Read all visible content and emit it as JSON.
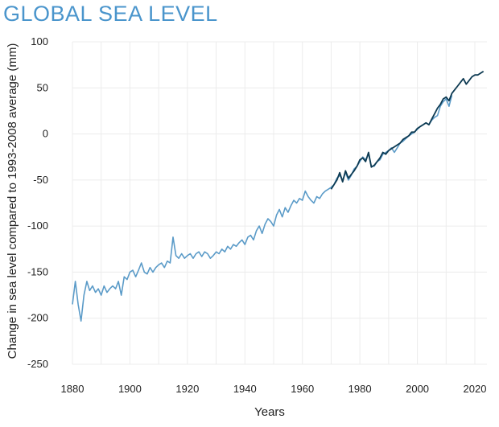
{
  "title": "GLOBAL SEA LEVEL",
  "chart_data": {
    "type": "line",
    "title": "GLOBAL SEA LEVEL",
    "xlabel": "Years",
    "ylabel": "Change in sea level compared to 1993-2008 average (mm)",
    "xlim": [
      1880,
      2023
    ],
    "ylim": [
      -250,
      100
    ],
    "xticks": [
      1880,
      1900,
      1920,
      1940,
      1960,
      1980,
      2000,
      2020
    ],
    "yticks": [
      100,
      50,
      0,
      -50,
      -100,
      -150,
      -200,
      -250
    ],
    "grid": true,
    "series": [
      {
        "color": "#5b9bc8",
        "x": [
          1880,
          1881,
          1882,
          1883,
          1884,
          1885,
          1886,
          1887,
          1888,
          1889,
          1890,
          1891,
          1892,
          1893,
          1894,
          1895,
          1896,
          1897,
          1898,
          1899,
          1900,
          1901,
          1902,
          1903,
          1904,
          1905,
          1906,
          1907,
          1908,
          1909,
          1910,
          1911,
          1912,
          1913,
          1914,
          1915,
          1916,
          1917,
          1918,
          1919,
          1920,
          1921,
          1922,
          1923,
          1924,
          1925,
          1926,
          1927,
          1928,
          1929,
          1930,
          1931,
          1932,
          1933,
          1934,
          1935,
          1936,
          1937,
          1938,
          1939,
          1940,
          1941,
          1942,
          1943,
          1944,
          1945,
          1946,
          1947,
          1948,
          1949,
          1950,
          1951,
          1952,
          1953,
          1954,
          1955,
          1956,
          1957,
          1958,
          1959,
          1960,
          1961,
          1962,
          1963,
          1964,
          1965,
          1966,
          1967,
          1968,
          1969,
          1970,
          1971,
          1972,
          1973,
          1974,
          1975,
          1976,
          1977,
          1978,
          1979,
          1980,
          1981,
          1982,
          1983,
          1984,
          1985,
          1986,
          1987,
          1988,
          1989,
          1990,
          1991,
          1992,
          1993,
          1994,
          1995,
          1996,
          1997,
          1998,
          1999,
          2000,
          2001,
          2002,
          2003,
          2004,
          2005,
          2006,
          2007,
          2008,
          2009,
          2010,
          2011,
          2012
        ],
        "y": [
          -185,
          -160,
          -185,
          -203,
          -175,
          -160,
          -170,
          -165,
          -172,
          -168,
          -175,
          -165,
          -172,
          -168,
          -165,
          -168,
          -160,
          -175,
          -155,
          -158,
          -150,
          -148,
          -155,
          -148,
          -140,
          -150,
          -152,
          -145,
          -150,
          -145,
          -142,
          -140,
          -145,
          -138,
          -140,
          -112,
          -132,
          -135,
          -130,
          -135,
          -132,
          -130,
          -135,
          -130,
          -128,
          -133,
          -128,
          -130,
          -135,
          -132,
          -128,
          -130,
          -125,
          -128,
          -122,
          -125,
          -120,
          -122,
          -118,
          -115,
          -120,
          -112,
          -110,
          -115,
          -105,
          -100,
          -108,
          -98,
          -92,
          -95,
          -100,
          -88,
          -82,
          -90,
          -80,
          -85,
          -78,
          -72,
          -75,
          -70,
          -72,
          -62,
          -68,
          -72,
          -75,
          -68,
          -70,
          -65,
          -62,
          -60,
          -58,
          -55,
          -48,
          -45,
          -50,
          -42,
          -50,
          -45,
          -38,
          -35,
          -30,
          -25,
          -28,
          -22,
          -35,
          -35,
          -30,
          -28,
          -22,
          -20,
          -18,
          -15,
          -20,
          -15,
          -10,
          -8,
          -5,
          -2,
          0,
          2,
          5,
          8,
          10,
          12,
          10,
          15,
          18,
          20,
          30,
          35,
          38,
          30,
          42
        ]
      },
      {
        "color": "#0d3a52",
        "x": [
          1970,
          1971,
          1972,
          1973,
          1974,
          1975,
          1976,
          1977,
          1978,
          1979,
          1980,
          1981,
          1982,
          1983,
          1984,
          1985,
          1986,
          1987,
          1988,
          1989,
          1990,
          1991,
          1992,
          1993,
          1994,
          1995,
          1996,
          1997,
          1998,
          1999,
          2000,
          2001,
          2002,
          2003,
          2004,
          2005,
          2006,
          2007,
          2008,
          2009,
          2010,
          2011,
          2012,
          2013,
          2014,
          2015,
          2016,
          2017,
          2018,
          2019,
          2020,
          2021,
          2022,
          2023
        ],
        "y": [
          -60,
          -55,
          -50,
          -42,
          -52,
          -40,
          -48,
          -44,
          -40,
          -35,
          -28,
          -26,
          -30,
          -20,
          -36,
          -34,
          -30,
          -26,
          -20,
          -22,
          -18,
          -16,
          -14,
          -12,
          -10,
          -6,
          -4,
          -2,
          2,
          2,
          6,
          8,
          10,
          12,
          10,
          16,
          22,
          28,
          32,
          38,
          40,
          36,
          44,
          48,
          52,
          56,
          60,
          54,
          58,
          62,
          64,
          64,
          66,
          68
        ]
      }
    ]
  }
}
